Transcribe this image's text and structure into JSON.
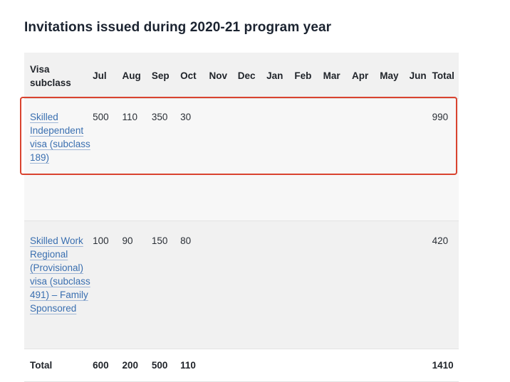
{
  "title": "Invitations issued during 2020-21 program year",
  "table": {
    "headers": [
      "Visa subclass",
      "Jul",
      "Aug",
      "Sep",
      "Oct",
      "Nov",
      "Dec",
      "Jan",
      "Feb",
      "Mar",
      "Apr",
      "May",
      "Jun",
      "Total"
    ],
    "rows": [
      {
        "visa_label": "Skilled Independent visa (subclass 189)",
        "values": [
          "500",
          "110",
          "350",
          "30",
          "",
          "",
          "",
          "",
          "",
          "",
          "",
          "",
          "990"
        ],
        "highlighted": true
      },
      {
        "visa_label": "Skilled Work Regional (Provisional) visa (subclass 491) – Family Sponsored",
        "values": [
          "100",
          "90",
          "150",
          "80",
          "",
          "",
          "",
          "",
          "",
          "",
          "",
          "",
          "420"
        ],
        "highlighted": false
      }
    ],
    "total_row": {
      "label": "Total",
      "values": [
        "600",
        "200",
        "500",
        "110",
        "",
        "",
        "",
        "",
        "",
        "",
        "",
        "",
        "1410"
      ]
    }
  },
  "colors": {
    "link": "#3a6fb0",
    "highlight_border": "#d9432f",
    "header_bg": "#f1f1f1"
  }
}
